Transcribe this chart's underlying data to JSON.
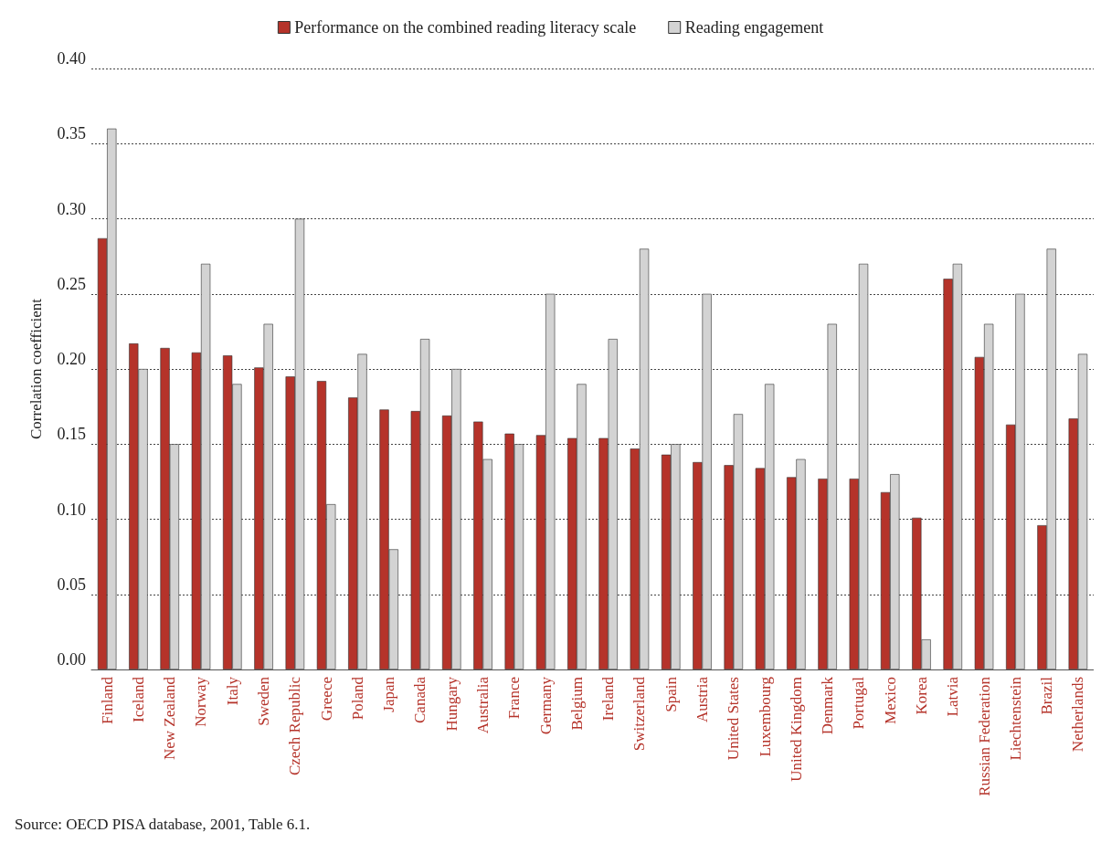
{
  "chart_data": {
    "type": "bar",
    "ylabel": "Correlation coefficient",
    "categories": [
      "Finland",
      "Iceland",
      "New Zealand",
      "Norway",
      "Italy",
      "Sweden",
      "Czech Republic",
      "Greece",
      "Poland",
      "Japan",
      "Canada",
      "Hungary",
      "Australia",
      "France",
      "Germany",
      "Belgium",
      "Ireland",
      "Switzerland",
      "Spain",
      "Austria",
      "United States",
      "Luxembourg",
      "United Kingdom",
      "Denmark",
      "Portugal",
      "Mexico",
      "Korea",
      "Latvia",
      "Russian Federation",
      "Liechtenstein",
      "Brazil",
      "Netherlands"
    ],
    "series": [
      {
        "name": "Performance on the combined reading literacy scale",
        "color": "#b5332a",
        "values": [
          0.287,
          0.217,
          0.214,
          0.211,
          0.209,
          0.201,
          0.195,
          0.192,
          0.181,
          0.173,
          0.172,
          0.169,
          0.165,
          0.157,
          0.156,
          0.154,
          0.154,
          0.147,
          0.143,
          0.138,
          0.136,
          0.134,
          0.128,
          0.127,
          0.127,
          0.118,
          0.101,
          0.26,
          0.208,
          0.163,
          0.096,
          0.167
        ]
      },
      {
        "name": "Reading engagement",
        "color": "#d3d3d3",
        "values": [
          0.36,
          0.2,
          0.15,
          0.27,
          0.19,
          0.23,
          0.3,
          0.11,
          0.21,
          0.08,
          0.22,
          0.2,
          0.14,
          0.15,
          0.25,
          0.19,
          0.22,
          0.28,
          0.15,
          0.25,
          0.17,
          0.19,
          0.14,
          0.23,
          0.27,
          0.13,
          0.02,
          0.27,
          0.23,
          0.25,
          0.28,
          0.21
        ]
      }
    ],
    "ylim": [
      0,
      0.4
    ],
    "yticks": [
      {
        "value": 0,
        "label": "0.00"
      },
      {
        "value": 0.05,
        "label": "0.05"
      },
      {
        "value": 0.1,
        "label": "0.10"
      },
      {
        "value": 0.15,
        "label": "0.15"
      },
      {
        "value": 0.2,
        "label": "0.20"
      },
      {
        "value": 0.25,
        "label": "0.25"
      },
      {
        "value": 0.3,
        "label": "0.30"
      },
      {
        "value": 0.35,
        "label": "0.35"
      },
      {
        "value": 0.4,
        "label": "0.40"
      }
    ],
    "grid": "y",
    "legend": "top",
    "annotations": [
      "Source: OECD PISA database, 2001, Table 6.1."
    ]
  }
}
